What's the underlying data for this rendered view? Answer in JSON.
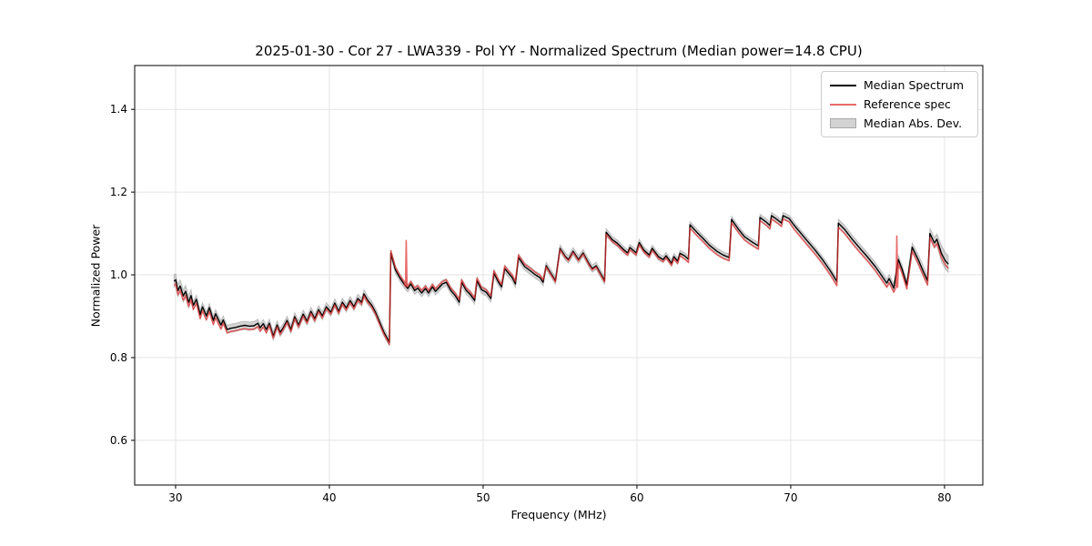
{
  "figure": {
    "background": "#ffffff",
    "text_color": "#000000",
    "grid_color": "#e4e4e4",
    "spine_color": "#000000"
  },
  "chart_data": {
    "type": "line",
    "title": "2025-01-30 - Cor 27 - LWA339 - Pol YY - Normalized Spectrum (Median power=14.8 CPU)",
    "xlabel": "Frequency (MHz)",
    "ylabel": "Normalized Power",
    "xlim": [
      27.34,
      82.49
    ],
    "ylim": [
      0.492,
      1.506
    ],
    "xticks": [
      30,
      40,
      50,
      60,
      70,
      80
    ],
    "xtick_labels": [
      "30",
      "40",
      "50",
      "60",
      "70",
      "80"
    ],
    "yticks": [
      0.6,
      0.8,
      1.0,
      1.2,
      1.4
    ],
    "ytick_labels": [
      "0.6",
      "0.8",
      "1.0",
      "1.2",
      "1.4"
    ],
    "grid": true,
    "legend_position": "upper right",
    "series": [
      {
        "name": "Median Spectrum",
        "type": "line",
        "color": "#000000",
        "opacity": 1.0,
        "linewidth": 1.4,
        "points": [
          [
            29.9,
            0.985
          ],
          [
            30.0,
            0.988
          ],
          [
            30.15,
            0.962
          ],
          [
            30.3,
            0.973
          ],
          [
            30.5,
            0.949
          ],
          [
            30.65,
            0.96
          ],
          [
            30.85,
            0.934
          ],
          [
            31.0,
            0.95
          ],
          [
            31.15,
            0.926
          ],
          [
            31.35,
            0.941
          ],
          [
            31.6,
            0.904
          ],
          [
            31.75,
            0.923
          ],
          [
            32.0,
            0.901
          ],
          [
            32.2,
            0.921
          ],
          [
            32.45,
            0.89
          ],
          [
            32.6,
            0.906
          ],
          [
            32.95,
            0.879
          ],
          [
            33.1,
            0.891
          ],
          [
            33.35,
            0.868
          ],
          [
            33.6,
            0.871
          ],
          [
            33.9,
            0.873
          ],
          [
            34.2,
            0.876
          ],
          [
            34.5,
            0.878
          ],
          [
            34.8,
            0.876
          ],
          [
            35.1,
            0.877
          ],
          [
            35.35,
            0.883
          ],
          [
            35.5,
            0.872
          ],
          [
            35.7,
            0.882
          ],
          [
            35.9,
            0.868
          ],
          [
            36.1,
            0.883
          ],
          [
            36.35,
            0.852
          ],
          [
            36.6,
            0.879
          ],
          [
            36.8,
            0.861
          ],
          [
            37.0,
            0.872
          ],
          [
            37.25,
            0.89
          ],
          [
            37.5,
            0.868
          ],
          [
            37.75,
            0.899
          ],
          [
            38.0,
            0.879
          ],
          [
            38.3,
            0.905
          ],
          [
            38.55,
            0.888
          ],
          [
            38.8,
            0.912
          ],
          [
            39.05,
            0.894
          ],
          [
            39.3,
            0.916
          ],
          [
            39.55,
            0.901
          ],
          [
            39.8,
            0.923
          ],
          [
            40.1,
            0.91
          ],
          [
            40.35,
            0.932
          ],
          [
            40.6,
            0.912
          ],
          [
            40.85,
            0.934
          ],
          [
            41.1,
            0.92
          ],
          [
            41.35,
            0.938
          ],
          [
            41.6,
            0.923
          ],
          [
            41.85,
            0.943
          ],
          [
            42.1,
            0.934
          ],
          [
            42.25,
            0.954
          ],
          [
            42.5,
            0.938
          ],
          [
            42.75,
            0.927
          ],
          [
            43.0,
            0.91
          ],
          [
            43.3,
            0.883
          ],
          [
            43.55,
            0.861
          ],
          [
            43.9,
            0.837
          ],
          [
            44.0,
            1.052
          ],
          [
            44.3,
            1.012
          ],
          [
            44.6,
            0.992
          ],
          [
            44.85,
            0.978
          ],
          [
            45.1,
            0.967
          ],
          [
            45.3,
            0.978
          ],
          [
            45.55,
            0.962
          ],
          [
            45.75,
            0.968
          ],
          [
            46.0,
            0.956
          ],
          [
            46.25,
            0.967
          ],
          [
            46.45,
            0.956
          ],
          [
            46.7,
            0.971
          ],
          [
            46.9,
            0.96
          ],
          [
            47.1,
            0.968
          ],
          [
            47.35,
            0.978
          ],
          [
            47.6,
            0.982
          ],
          [
            47.9,
            0.962
          ],
          [
            48.2,
            0.949
          ],
          [
            48.45,
            0.934
          ],
          [
            48.6,
            0.982
          ],
          [
            48.9,
            0.962
          ],
          [
            49.15,
            0.953
          ],
          [
            49.45,
            0.938
          ],
          [
            49.6,
            0.986
          ],
          [
            49.9,
            0.964
          ],
          [
            50.2,
            0.958
          ],
          [
            50.5,
            0.943
          ],
          [
            50.7,
            1.004
          ],
          [
            51.0,
            0.982
          ],
          [
            51.2,
            0.971
          ],
          [
            51.4,
            1.015
          ],
          [
            51.9,
            0.993
          ],
          [
            52.1,
            0.978
          ],
          [
            52.3,
            1.042
          ],
          [
            52.7,
            1.02
          ],
          [
            53.1,
            1.009
          ],
          [
            53.4,
            1.0
          ],
          [
            53.7,
            0.993
          ],
          [
            53.9,
            0.982
          ],
          [
            54.1,
            1.022
          ],
          [
            54.4,
            1.004
          ],
          [
            54.7,
            0.986
          ],
          [
            55.0,
            1.064
          ],
          [
            55.35,
            1.044
          ],
          [
            55.55,
            1.037
          ],
          [
            55.85,
            1.057
          ],
          [
            56.2,
            1.037
          ],
          [
            56.5,
            1.053
          ],
          [
            56.9,
            1.026
          ],
          [
            57.1,
            1.015
          ],
          [
            57.35,
            1.022
          ],
          [
            57.9,
            0.986
          ],
          [
            58.0,
            1.103
          ],
          [
            58.4,
            1.085
          ],
          [
            58.7,
            1.077
          ],
          [
            59.2,
            1.059
          ],
          [
            59.4,
            1.053
          ],
          [
            59.55,
            1.066
          ],
          [
            59.95,
            1.053
          ],
          [
            60.15,
            1.078
          ],
          [
            60.45,
            1.06
          ],
          [
            60.8,
            1.048
          ],
          [
            61.0,
            1.064
          ],
          [
            61.4,
            1.044
          ],
          [
            61.7,
            1.037
          ],
          [
            61.9,
            1.046
          ],
          [
            62.25,
            1.028
          ],
          [
            62.4,
            1.044
          ],
          [
            62.65,
            1.033
          ],
          [
            62.8,
            1.052
          ],
          [
            63.1,
            1.046
          ],
          [
            63.35,
            1.038
          ],
          [
            63.45,
            1.121
          ],
          [
            63.9,
            1.103
          ],
          [
            64.3,
            1.088
          ],
          [
            64.7,
            1.072
          ],
          [
            65.2,
            1.057
          ],
          [
            65.6,
            1.048
          ],
          [
            66.0,
            1.042
          ],
          [
            66.15,
            1.134
          ],
          [
            66.6,
            1.11
          ],
          [
            67.0,
            1.092
          ],
          [
            67.5,
            1.079
          ],
          [
            67.9,
            1.07
          ],
          [
            68.0,
            1.139
          ],
          [
            68.4,
            1.128
          ],
          [
            68.65,
            1.119
          ],
          [
            68.75,
            1.143
          ],
          [
            69.1,
            1.134
          ],
          [
            69.4,
            1.125
          ],
          [
            69.5,
            1.143
          ],
          [
            69.9,
            1.136
          ],
          [
            70.2,
            1.121
          ],
          [
            70.6,
            1.103
          ],
          [
            71.1,
            1.081
          ],
          [
            71.6,
            1.059
          ],
          [
            72.1,
            1.035
          ],
          [
            72.6,
            1.008
          ],
          [
            73.0,
            0.984
          ],
          [
            73.1,
            1.125
          ],
          [
            73.5,
            1.11
          ],
          [
            74.0,
            1.086
          ],
          [
            74.5,
            1.064
          ],
          [
            75.0,
            1.043
          ],
          [
            75.5,
            1.02
          ],
          [
            75.9,
            0.999
          ],
          [
            76.25,
            0.98
          ],
          [
            76.4,
            0.991
          ],
          [
            76.7,
            0.968
          ],
          [
            77.0,
            1.037
          ],
          [
            77.25,
            1.013
          ],
          [
            77.55,
            0.976
          ],
          [
            77.9,
            1.067
          ],
          [
            78.3,
            1.036
          ],
          [
            78.6,
            1.01
          ],
          [
            78.9,
            0.986
          ],
          [
            79.05,
            1.1
          ],
          [
            79.35,
            1.077
          ],
          [
            79.5,
            1.086
          ],
          [
            79.8,
            1.052
          ],
          [
            80.05,
            1.034
          ],
          [
            80.25,
            1.026
          ]
        ]
      },
      {
        "name": "Reference spec",
        "type": "line",
        "color": "#e03131",
        "opacity": 0.72,
        "linewidth": 1.6,
        "derived_from": "Median Spectrum",
        "offset_segments": [
          [
            29.8,
            33.0,
            -0.01
          ],
          [
            33.0,
            36.0,
            -0.008
          ],
          [
            36.0,
            44.0,
            -0.005
          ],
          [
            44.0,
            54.0,
            0.006
          ],
          [
            54.0,
            58.0,
            -0.003
          ],
          [
            58.0,
            63.0,
            -0.005
          ],
          [
            63.0,
            70.0,
            -0.008
          ],
          [
            70.0,
            80.4,
            -0.01
          ]
        ],
        "spikes": [
          {
            "f": 45.0,
            "top": 1.083,
            "base": 0.972
          },
          {
            "f": 76.9,
            "top": 1.094,
            "base": 0.97
          }
        ]
      },
      {
        "name": "Median Abs. Dev.",
        "type": "band",
        "color": "#808080",
        "opacity": 0.35,
        "around": "Median Spectrum",
        "halfwidth_segments": [
          [
            29.8,
            31.0,
            0.015
          ],
          [
            31.0,
            43.5,
            0.01
          ],
          [
            43.5,
            58.0,
            0.009
          ],
          [
            58.0,
            73.0,
            0.008
          ],
          [
            73.0,
            78.0,
            0.01
          ],
          [
            78.0,
            79.7,
            0.013
          ],
          [
            79.7,
            80.4,
            0.02
          ]
        ]
      }
    ]
  },
  "legend": {
    "items": [
      "Median Spectrum",
      "Reference spec",
      "Median Abs. Dev."
    ]
  }
}
